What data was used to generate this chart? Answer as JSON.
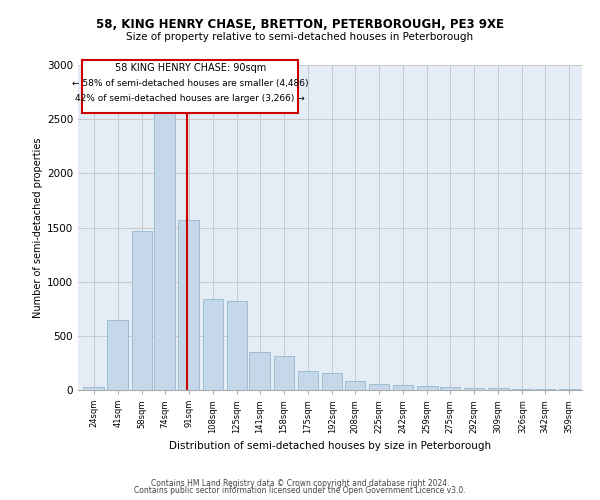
{
  "title1": "58, KING HENRY CHASE, BRETTON, PETERBOROUGH, PE3 9XE",
  "title2": "Size of property relative to semi-detached houses in Peterborough",
  "xlabel": "Distribution of semi-detached houses by size in Peterborough",
  "ylabel": "Number of semi-detached properties",
  "footer1": "Contains HM Land Registry data © Crown copyright and database right 2024.",
  "footer2": "Contains public sector information licensed under the Open Government Licence v3.0.",
  "annotation_title": "58 KING HENRY CHASE: 90sqm",
  "annotation_line1": "← 58% of semi-detached houses are smaller (4,486)",
  "annotation_line2": "42% of semi-detached houses are larger (3,266) →",
  "property_size": 90,
  "categories": [
    24,
    41,
    58,
    74,
    91,
    108,
    125,
    141,
    158,
    175,
    192,
    208,
    225,
    242,
    259,
    275,
    292,
    309,
    326,
    342,
    359
  ],
  "values": [
    30,
    650,
    1470,
    2600,
    1570,
    840,
    820,
    350,
    310,
    175,
    155,
    85,
    60,
    45,
    35,
    25,
    20,
    15,
    10,
    10,
    5
  ],
  "bar_color": "#c5d8ea",
  "bar_edge_color": "#8aafc8",
  "line_color": "#cc0000",
  "grid_color": "#c8c8c8",
  "bg_color": "#e4edf5",
  "box_color": "#cc0000",
  "ylim": [
    0,
    3000
  ],
  "yticks": [
    0,
    500,
    1000,
    1500,
    2000,
    2500,
    3000
  ]
}
